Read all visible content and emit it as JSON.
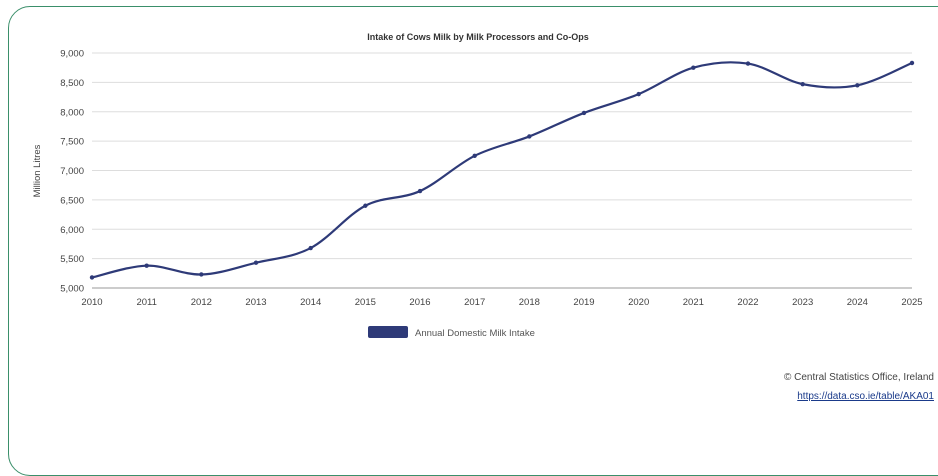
{
  "chart_data": {
    "type": "line",
    "title": "Intake of Cows Milk by Milk Processors and Co-Ops",
    "ylabel": "Million Litres",
    "xlabel": "",
    "ylim": [
      5000,
      9000
    ],
    "yticks": [
      "5,000",
      "5,500",
      "6,000",
      "6,500",
      "7,000",
      "7,500",
      "8,000",
      "8,500",
      "9,000"
    ],
    "x": [
      "2010",
      "2011",
      "2012",
      "2013",
      "2014",
      "2015",
      "2016",
      "2017",
      "2018",
      "2019",
      "2020",
      "2021",
      "2022",
      "2023",
      "2024",
      "2025"
    ],
    "series": [
      {
        "name": "Annual Domestic Milk Intake",
        "color": "#2e3a78",
        "values": [
          5180,
          5380,
          5230,
          5430,
          5680,
          6400,
          6650,
          7250,
          7580,
          7980,
          8300,
          8750,
          8820,
          8470,
          8450,
          8830
        ]
      }
    ],
    "grid": true,
    "legend": "bottom-center"
  },
  "footer": {
    "credit": "© Central Statistics Office, Ireland",
    "link": "https://data.cso.ie/table/AKA01"
  }
}
